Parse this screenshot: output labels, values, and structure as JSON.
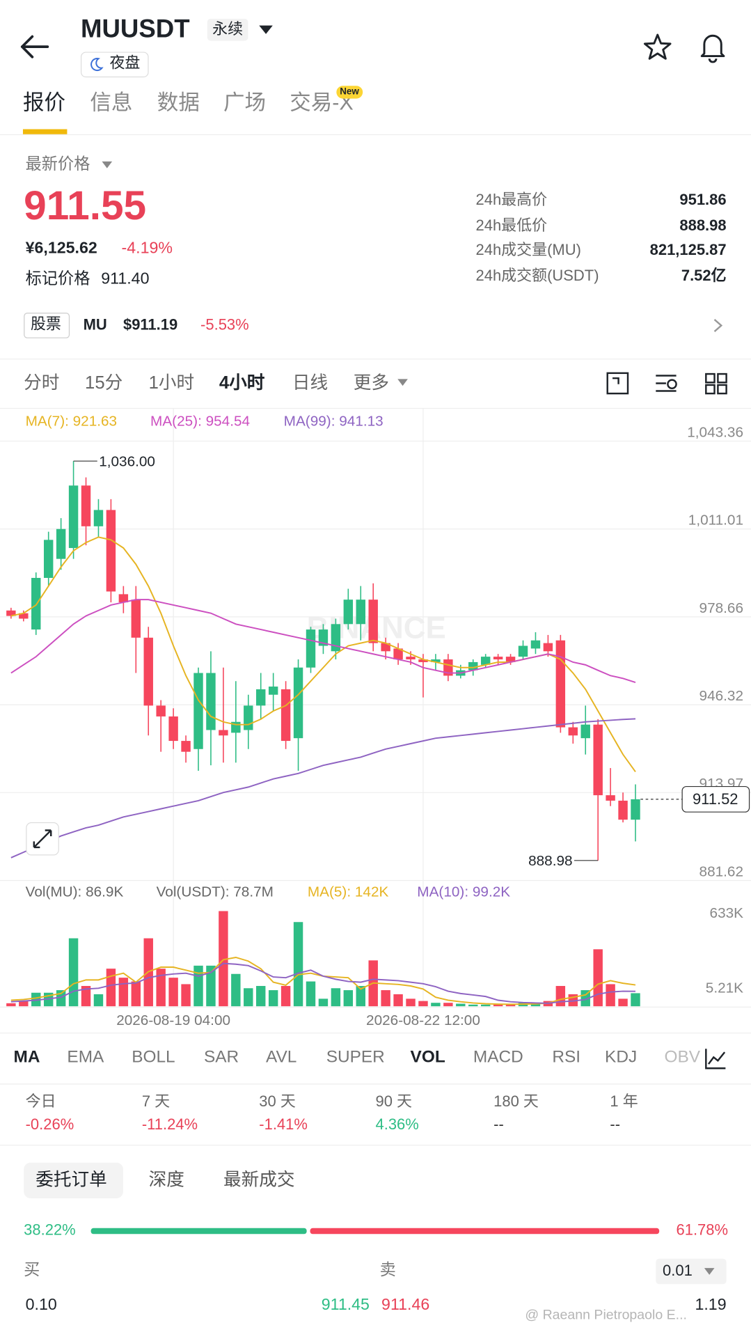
{
  "header": {
    "title": "MUUSDT",
    "tag": "永续",
    "badge": "夜盘"
  },
  "tabs": {
    "items": [
      "报价",
      "信息",
      "数据",
      "广场",
      "交易-X"
    ],
    "new_badge": "New"
  },
  "price": {
    "label": "最新价格",
    "last": "911.55",
    "cny": "¥6,125.62",
    "change": "-4.19%",
    "mark_label": "标记价格",
    "mark_value": "911.40"
  },
  "stats": [
    [
      "24h最高价",
      "951.86"
    ],
    [
      "24h最低价",
      "888.98"
    ],
    [
      "24h成交量(MU)",
      "821,125.87"
    ],
    [
      "24h成交额(USDT)",
      "7.52亿"
    ]
  ],
  "stock": {
    "tag": "股票",
    "symbol": "MU",
    "price": "$911.19",
    "change": "-5.53%"
  },
  "intervals": [
    "分时",
    "15分",
    "1小时",
    "4小时",
    "日线",
    "更多"
  ],
  "chart_data": {
    "type": "candlestick",
    "watermark": "BINANCE",
    "categories": [
      null,
      null,
      null,
      null,
      null,
      null,
      null,
      null,
      null,
      null,
      null,
      null,
      null,
      "2026-08-19 04:00",
      null,
      null,
      null,
      null,
      null,
      null,
      null,
      null,
      null,
      null,
      null,
      null,
      null,
      null,
      null,
      null,
      null,
      null,
      null,
      "2026-08-22 12:00",
      null,
      null,
      null,
      null,
      null,
      null,
      null,
      null,
      null,
      null,
      null,
      null,
      null,
      null,
      null,
      null,
      null
    ],
    "open": [
      981,
      980,
      974,
      993,
      1000,
      1004,
      1027,
      1012,
      1018,
      987,
      985,
      971,
      946,
      942,
      933,
      930,
      937,
      937,
      936,
      937,
      946,
      950,
      952,
      934,
      960,
      968,
      966,
      976,
      976,
      985,
      969,
      967,
      964,
      963,
      962,
      963,
      957,
      959,
      961,
      964,
      964,
      964,
      967,
      969,
      970,
      938,
      934,
      939,
      913,
      911,
      904
    ],
    "high": [
      982,
      981,
      995,
      1010,
      1015,
      1036,
      1030,
      1022,
      1022,
      990,
      990,
      975,
      948,
      945,
      935,
      960,
      966,
      960,
      955,
      950,
      958,
      958,
      955,
      963,
      975,
      976,
      978,
      989,
      990,
      991,
      971,
      969,
      966,
      965,
      965,
      965,
      961,
      963,
      965,
      965,
      965,
      970,
      973,
      972,
      972,
      940,
      946,
      941,
      923,
      914,
      917
    ],
    "low": [
      978,
      977,
      972,
      990,
      996,
      1000,
      1005,
      1008,
      984,
      980,
      958,
      935,
      929,
      930,
      925,
      922,
      924,
      925,
      925,
      930,
      941,
      944,
      930,
      922,
      958,
      965,
      963,
      974,
      970,
      966,
      963,
      961,
      961,
      949,
      959,
      955,
      956,
      957,
      960,
      961,
      961,
      963,
      965,
      964,
      936,
      932,
      928,
      888.98,
      909,
      903,
      896
    ],
    "close": [
      979,
      978,
      993,
      1007,
      1011,
      1027,
      1012,
      1018,
      988,
      984,
      971,
      946,
      942,
      933,
      929,
      958,
      958,
      935,
      940,
      946,
      952,
      953,
      933,
      960,
      974,
      974,
      976,
      985,
      985,
      969,
      966,
      963,
      963,
      962,
      963,
      957,
      959,
      962,
      964,
      963,
      962,
      968,
      970,
      966,
      938,
      935,
      939,
      913,
      911,
      904,
      911.52
    ],
    "ylim": [
      881.62,
      1043.36
    ],
    "yticks": [
      {
        "value": 1043.36,
        "label": "1,043.36"
      },
      {
        "value": 1011.01,
        "label": "1,011.01"
      },
      978.66,
      946.32,
      913.97,
      881.62
    ],
    "grid": true,
    "high_label": {
      "value": 1036,
      "label": "1,036.00"
    },
    "low_label": 888.98,
    "last_price": 911.52,
    "series": [
      {
        "name": "MA(7): 921.63",
        "color": "#e6b422",
        "values": [
          979,
          980,
          983,
          990,
          997,
          1003,
          1006,
          1008,
          1007,
          1004,
          998,
          990,
          980,
          968,
          957,
          948,
          942,
          940,
          939,
          939,
          941,
          944,
          946,
          950,
          955,
          960,
          965,
          968,
          969,
          970,
          969,
          967,
          965,
          963,
          962,
          961,
          960,
          960,
          961,
          962,
          962,
          963,
          964,
          965,
          963,
          958,
          952,
          944,
          936,
          928,
          921.63
        ]
      },
      {
        "name": "MA(25): 954.54",
        "color": "#cc4fc0",
        "values": [
          958,
          961,
          964,
          968,
          972,
          976,
          979,
          981,
          983,
          984,
          985,
          985,
          984,
          983,
          982,
          981,
          980,
          978,
          976,
          975,
          974,
          973,
          972,
          971,
          970,
          969,
          968,
          967,
          966,
          965,
          964,
          963,
          962,
          960,
          959,
          958,
          958,
          959,
          960,
          961,
          962,
          963,
          964,
          965,
          964,
          962,
          961,
          959,
          957,
          956,
          954.54
        ]
      },
      {
        "name": "MA(99): 941.13",
        "color": "#8e63c2",
        "values": [
          890,
          892,
          894,
          896,
          898,
          899.5,
          901,
          902,
          903.5,
          905,
          906,
          907,
          908,
          909,
          910,
          911,
          912.5,
          914,
          915,
          916,
          917.5,
          919,
          920,
          921,
          922.5,
          924,
          925,
          926,
          927,
          928.5,
          930,
          931,
          932,
          933,
          934,
          934.5,
          935,
          935.5,
          936,
          936.5,
          937,
          937.5,
          938,
          938.5,
          939,
          939.5,
          940,
          940.3,
          940.6,
          940.9,
          941.13
        ]
      }
    ],
    "volume": {
      "legend": [
        "Vol(MU): 86.9K",
        "Vol(USDT): 78.7M"
      ],
      "values": [
        20000,
        35000,
        90000,
        90000,
        107000,
        452000,
        135000,
        80000,
        250000,
        190000,
        165000,
        452000,
        250000,
        190000,
        147000,
        270000,
        270000,
        633000,
        215000,
        120000,
        135000,
        107000,
        135000,
        560000,
        165000,
        50000,
        120000,
        107000,
        135000,
        305000,
        107000,
        80000,
        50000,
        35000,
        23000,
        23000,
        17000,
        11000,
        11000,
        11000,
        11000,
        23000,
        23000,
        35000,
        135000,
        80000,
        107000,
        379000,
        147000,
        50000,
        86900
      ],
      "ylim": [
        0,
        633000
      ],
      "yticks": [
        {
          "value": 633000,
          "label": "633K"
        },
        {
          "value": 5210,
          "label": "5.21K"
        }
      ],
      "series": [
        {
          "name": "MA(5): 142K",
          "color": "#e6b422",
          "values": [
            40000,
            45000,
            55000,
            70000,
            85000,
            150000,
            175000,
            175000,
            200000,
            220000,
            160000,
            230000,
            260000,
            260000,
            240000,
            220000,
            225000,
            310000,
            325000,
            300000,
            250000,
            160000,
            140000,
            210000,
            220000,
            200000,
            195000,
            190000,
            115000,
            155000,
            150000,
            145000,
            135000,
            115000,
            60000,
            40000,
            30000,
            22000,
            17000,
            14000,
            13000,
            14000,
            16000,
            21000,
            46000,
            60000,
            76000,
            147000,
            170000,
            153000,
            142000
          ]
        },
        {
          "name": "MA(10): 99.2K",
          "color": "#8e63c2",
          "values": [
            30000,
            35000,
            40000,
            50000,
            60000,
            100000,
            115000,
            120000,
            140000,
            150000,
            155000,
            190000,
            205000,
            215000,
            220000,
            200000,
            225000,
            285000,
            280000,
            270000,
            235000,
            195000,
            190000,
            220000,
            240000,
            200000,
            180000,
            165000,
            160000,
            180000,
            175000,
            170000,
            160000,
            150000,
            130000,
            100000,
            85000,
            75000,
            65000,
            40000,
            30000,
            25000,
            22000,
            20000,
            30000,
            35000,
            45000,
            80000,
            95000,
            100000,
            99200
          ]
        }
      ]
    }
  },
  "indicators": [
    "MA",
    "EMA",
    "BOLL",
    "SAR",
    "AVL",
    "SUPER",
    "VOL",
    "MACD",
    "RSI",
    "KDJ",
    "OBV"
  ],
  "performance": [
    [
      "今日",
      "-0.26%"
    ],
    [
      "7 天",
      "-11.24%"
    ],
    [
      "30 天",
      "-1.41%"
    ],
    [
      "90 天",
      "4.36%"
    ],
    [
      "180 天",
      "--"
    ],
    [
      "1 年",
      "--"
    ]
  ],
  "orderbook": {
    "tabs": [
      "委托订单",
      "深度",
      "最新成交"
    ],
    "buy_pct": "38.22%",
    "sell_pct": "61.78%",
    "buy": "买",
    "sell": "卖",
    "precision": "0.01",
    "rows": [
      [
        "0.10",
        "911.45",
        "911.46",
        "1.19"
      ]
    ],
    "watermark": "@ Raeann Pietropaolo E..."
  }
}
